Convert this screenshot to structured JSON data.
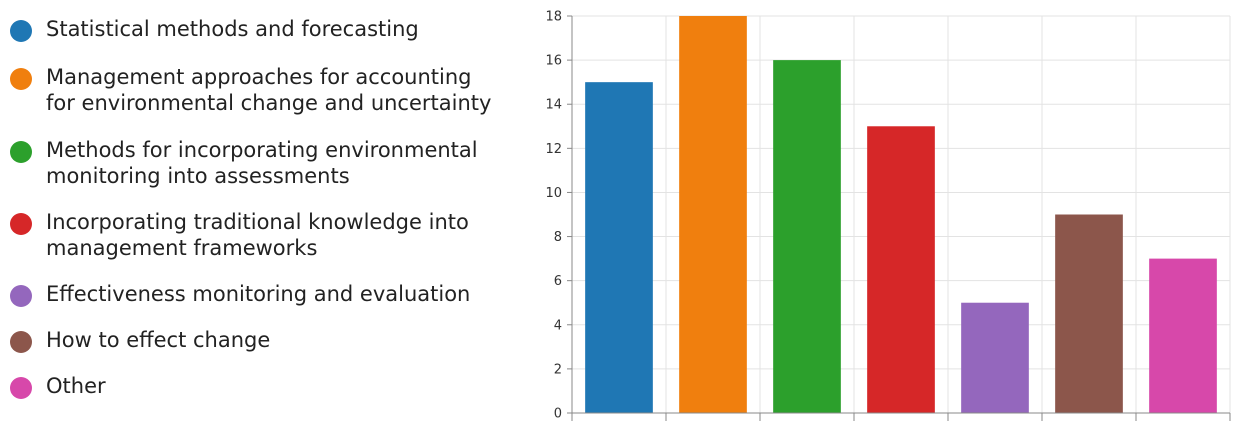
{
  "chart_data": {
    "type": "bar",
    "categories": [
      "Statistical methods and forecasting",
      "Management approaches for accounting for environmental change and uncertainty",
      "Methods for incorporating environmental monitoring into assessments",
      "Incorporating traditional knowledge into management frameworks",
      "Effectiveness monitoring and evaluation",
      "How to effect change",
      "Other"
    ],
    "values": [
      15,
      18,
      16,
      13,
      5,
      9,
      7
    ],
    "colors": [
      "#1f77b4",
      "#f07f0e",
      "#2ca02c",
      "#d62728",
      "#9467bd",
      "#8c564b",
      "#d748aa"
    ],
    "ylim": [
      0,
      18
    ],
    "yticks": [
      0,
      2,
      4,
      6,
      8,
      10,
      12,
      14,
      16,
      18
    ],
    "grid": true,
    "legend_position": "left"
  }
}
